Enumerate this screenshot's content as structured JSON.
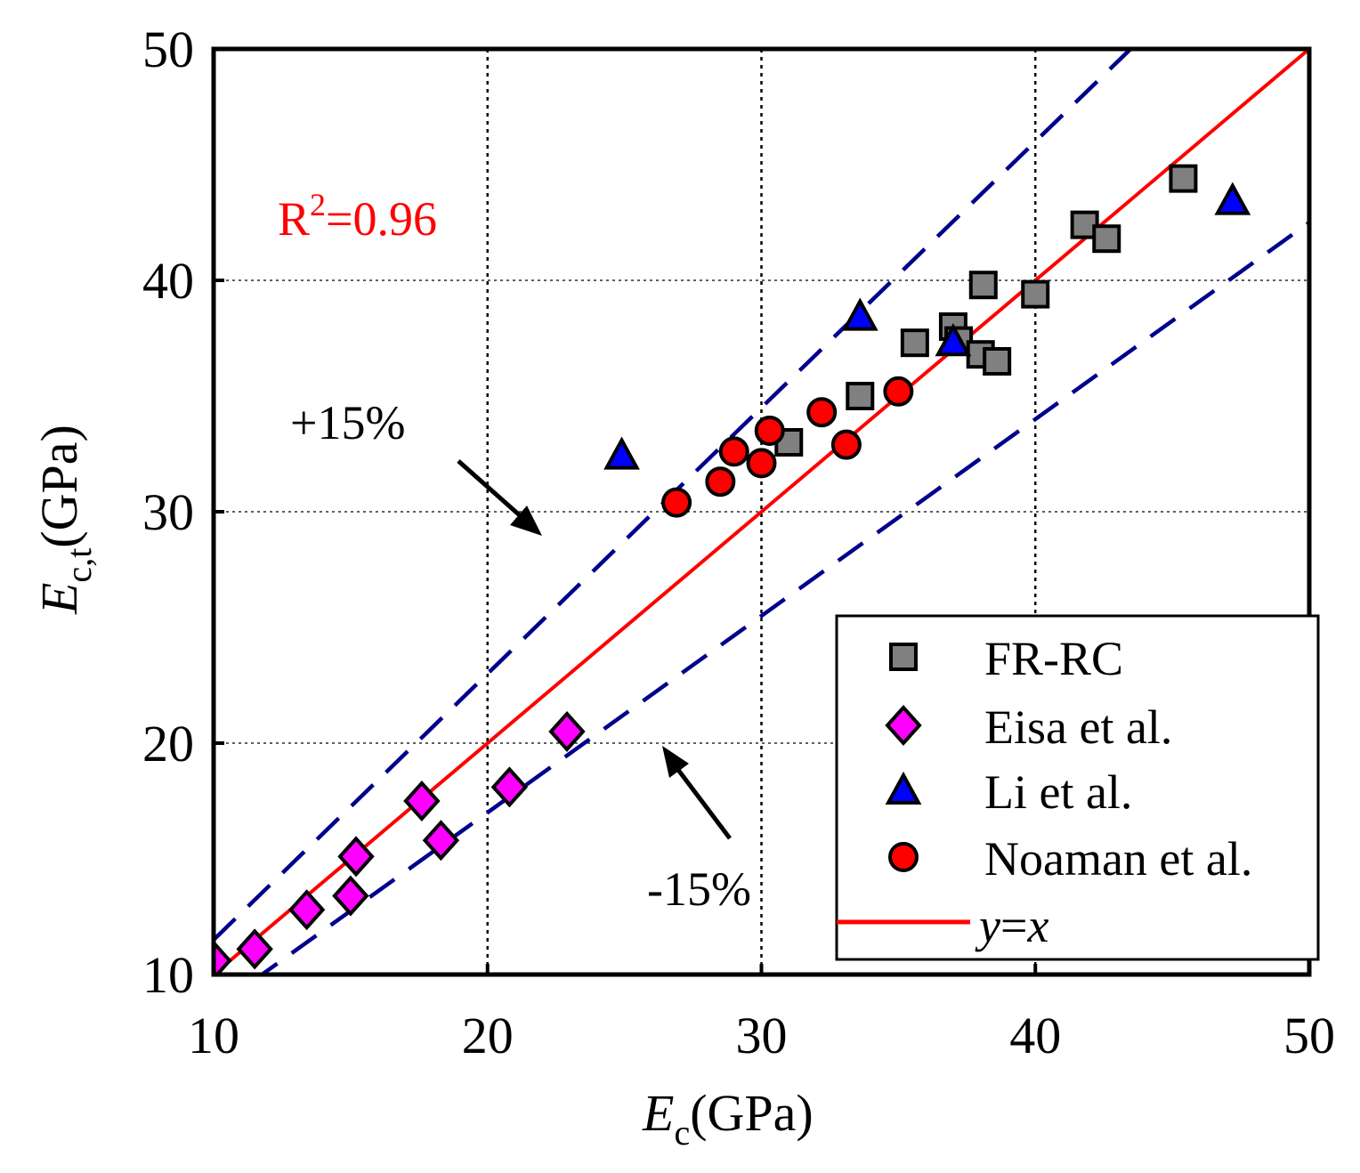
{
  "chart_data": {
    "type": "scatter",
    "xlabel_main": "E",
    "xlabel_sub": "c",
    "xlabel_unit": "(GPa)",
    "ylabel_main": "E",
    "ylabel_sub": "c,t",
    "ylabel_unit": "(GPa)",
    "xlim": [
      10,
      50
    ],
    "ylim": [
      10,
      50
    ],
    "xticks": [
      10,
      20,
      30,
      40,
      50
    ],
    "yticks": [
      10,
      20,
      30,
      40,
      50
    ],
    "grid": true,
    "legend_position": "bottom-right",
    "series": [
      {
        "name": "FR-RC",
        "marker": "square",
        "color": "#808080",
        "points": [
          [
            31,
            33
          ],
          [
            33.6,
            35
          ],
          [
            35.6,
            37.3
          ],
          [
            37,
            38
          ],
          [
            37.2,
            37.4
          ],
          [
            38,
            36.8
          ],
          [
            38.1,
            39.8
          ],
          [
            38.6,
            36.5
          ],
          [
            40,
            39.4
          ],
          [
            41.8,
            42.4
          ],
          [
            42.6,
            41.8
          ],
          [
            45.4,
            44.4
          ]
        ]
      },
      {
        "name": "Eisa et al.",
        "marker": "diamond",
        "color": "#ff00ff",
        "points": [
          [
            10,
            10.6
          ],
          [
            11.5,
            11.1
          ],
          [
            13.4,
            12.8
          ],
          [
            15,
            13.4
          ],
          [
            15.2,
            15.1
          ],
          [
            17.6,
            17.5
          ],
          [
            18.3,
            15.8
          ],
          [
            20.8,
            18.1
          ],
          [
            22.9,
            20.5
          ]
        ]
      },
      {
        "name": "Li et al.",
        "marker": "triangle",
        "color": "#0000ff",
        "points": [
          [
            24.9,
            32.4
          ],
          [
            33.6,
            38.4
          ],
          [
            37,
            37.3
          ],
          [
            47.2,
            43.4
          ]
        ]
      },
      {
        "name": "Noaman et al.",
        "marker": "circle",
        "color": "#ff0000",
        "points": [
          [
            26.9,
            30.4
          ],
          [
            28.5,
            31.3
          ],
          [
            29,
            32.6
          ],
          [
            30,
            32.1
          ],
          [
            30.3,
            33.5
          ],
          [
            32.2,
            34.3
          ],
          [
            33.1,
            32.9
          ],
          [
            35,
            35.2
          ]
        ]
      }
    ],
    "fit_line": {
      "name": "y=x",
      "label_y": "y",
      "label_eq": "=",
      "label_x": "x",
      "color": "#ff0000",
      "from": [
        10,
        10
      ],
      "to": [
        50,
        50
      ]
    },
    "bound_lines": [
      {
        "factor": 1.15,
        "color": "#00008b"
      },
      {
        "factor": 0.85,
        "color": "#00008b"
      }
    ],
    "annotations": {
      "r2_base": "R",
      "r2_exp": "2",
      "r2_value": "=0.96",
      "r2_color": "#ff0000",
      "upper_label": "+15%",
      "lower_label": "-15%"
    }
  }
}
